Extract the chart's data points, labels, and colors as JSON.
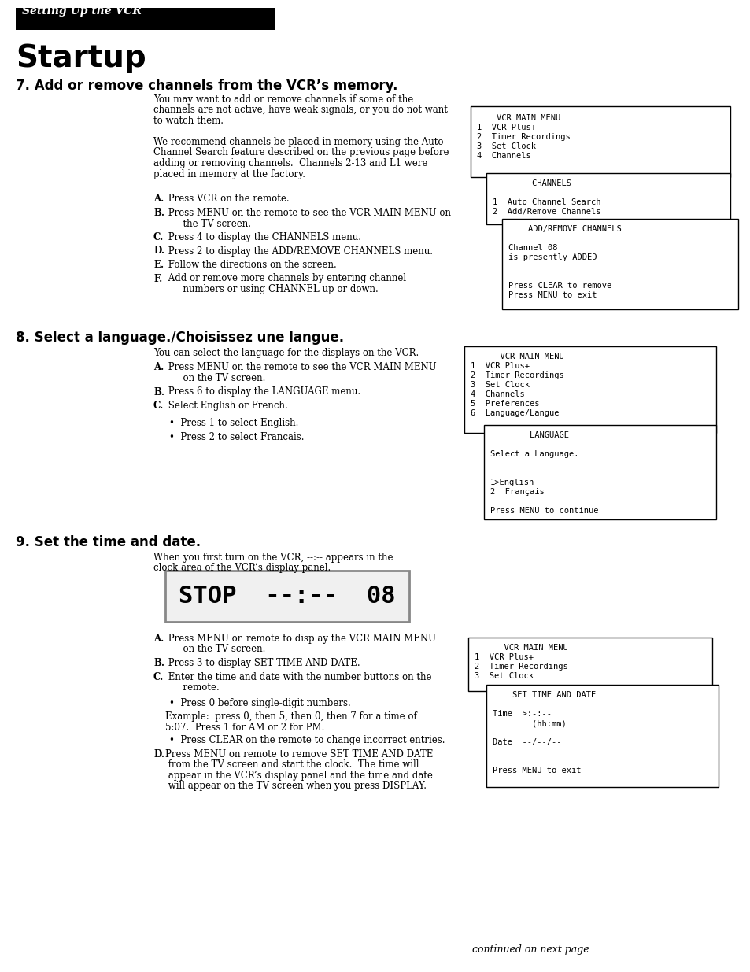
{
  "page_bg": "#ffffff",
  "header_bg": "#000000",
  "header_text": "Setting Up the VCR",
  "header_text_color": "#ffffff",
  "title": "Startup",
  "section1_heading": "7. Add or remove channels from the VCR’s memory.",
  "section1_body": [
    "You may want to add or remove channels if some of the",
    "channels are not active, have weak signals, or you do not want",
    "to watch them.",
    "",
    "We recommend channels be placed in memory using the Auto",
    "Channel Search feature described on the previous page before",
    "adding or removing channels.  Channels 2-13 and L1 were",
    "placed in memory at the factory.",
    "",
    "A.  Press VCR on the remote.",
    "",
    "B.  Press MENU on the remote to see the VCR MAIN MENU on",
    "     the TV screen.",
    "",
    "C.  Press 4 to display the CHANNELS menu.",
    "",
    "D.  Press 2 to display the ADD/REMOVE CHANNELS menu.",
    "",
    "E.  Follow the directions on the screen.",
    "",
    "F.  Add or remove more channels by entering channel",
    "     numbers or using CHANNEL up or down."
  ],
  "box1_lines": [
    "    VCR MAIN MENU",
    "1  VCR Plus+",
    "2  Timer Recordings",
    "3  Set Clock",
    "4  Channels"
  ],
  "box2_lines": [
    "        CHANNELS",
    "",
    "1  Auto Channel Search",
    "2  Add/Remove Channels"
  ],
  "box3_lines": [
    "    ADD/REMOVE CHANNELS",
    "",
    "Channel 08",
    "is presently ADDED",
    "",
    "",
    "Press CLEAR to remove",
    "Press MENU to exit"
  ],
  "section2_heading": "8. Select a language./Choisissez une langue.",
  "section2_body": [
    "You can select the language for the displays on the VCR.",
    "",
    "A.  Press MENU on the remote to see the VCR MAIN MENU",
    "     on the TV screen.",
    "",
    "B.  Press 6 to display the LANGUAGE menu.",
    "",
    "C.  Select English or French.",
    "",
    "      •  Press 1 to select English.",
    "",
    "      •  Press 2 to select Français."
  ],
  "box4_lines": [
    "      VCR MAIN MENU",
    "1  VCR Plus+",
    "2  Timer Recordings",
    "3  Set Clock",
    "4  Channels",
    "5  Preferences",
    "6  Language/Langue"
  ],
  "box5_lines": [
    "        LANGUAGE",
    "",
    "Select a Language.",
    "",
    "",
    "1>English",
    "2  Français",
    "",
    "Press MENU to continue"
  ],
  "section3_heading": "9. Set the time and date.",
  "section3_body1": [
    "When you first turn on the VCR, --:-- appears in the",
    "clock area of the VCR’s display panel."
  ],
  "display_text": "STOP  --:--  08",
  "section3_body2": [
    "A.  Press MENU on remote to display the VCR MAIN MENU",
    "     on the TV screen.",
    "",
    "B.  Press 3 to display SET TIME AND DATE.",
    "",
    "C.  Enter the time and date with the number buttons on the",
    "     remote.",
    "",
    "      •  Press 0 before single-digit numbers.",
    "",
    "     Example:  press 0, then 5, then 0, then 7 for a time of",
    "     5:07.  Press 1 for AM or 2 for PM.",
    "",
    "      •  Press CLEAR on the remote to change incorrect entries.",
    "",
    "D.  Press MENU on remote to remove SET TIME AND DATE",
    "     from the TV screen and start the clock.  The time will",
    "     appear in the VCR’s display panel and the time and date",
    "     will appear on the TV screen when you press DISPLAY."
  ],
  "box6_lines": [
    "      VCR MAIN MENU",
    "1  VCR Plus+",
    "2  Timer Recordings",
    "3  Set Clock"
  ],
  "box7_lines": [
    "    SET TIME AND DATE",
    "",
    "Time  >:-:--",
    "        (hh:mm)",
    "",
    "Date  --/--/--",
    "",
    "",
    "Press MENU to exit"
  ],
  "footer_text": "continued on next page"
}
